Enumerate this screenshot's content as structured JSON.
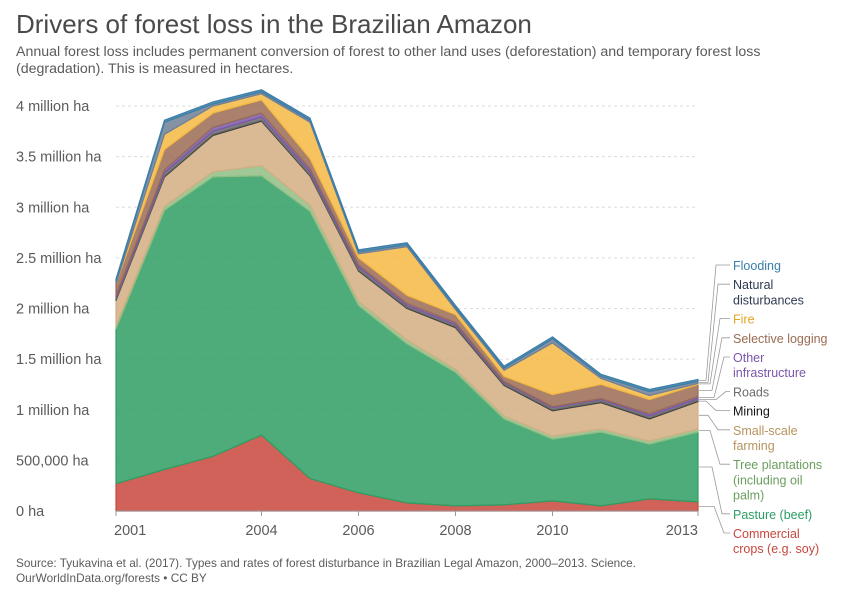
{
  "title": "Drivers of forest loss in the Brazilian Amazon",
  "subtitle": "Annual forest loss includes permanent conversion of forest to other land uses (deforestation) and temporary forest loss (degradation). This is measured in hectares.",
  "footer": {
    "source": "Source: Tyukavina et al. (2017). Types and rates of forest disturbance in Brazilian Legal Amazon, 2000–2013. Science.",
    "credit": "OurWorldInData.org/forests • CC BY"
  },
  "chart_data": {
    "type": "area",
    "stacked": true,
    "x": [
      2001,
      2002,
      2003,
      2004,
      2005,
      2006,
      2007,
      2008,
      2009,
      2010,
      2011,
      2012,
      2013
    ],
    "xlim": [
      2001,
      2013
    ],
    "ylim": [
      0,
      4000000
    ],
    "yticks": [
      0,
      500000,
      1000000,
      1500000,
      2000000,
      2500000,
      3000000,
      3500000,
      4000000
    ],
    "ytick_labels": [
      "0 ha",
      "500,000 ha",
      "1 million ha",
      "1.5 million ha",
      "2 million ha",
      "2.5 million ha",
      "3 million ha",
      "3.5 million ha",
      "4 million ha"
    ],
    "xticks": [
      2001,
      2004,
      2006,
      2008,
      2010,
      2013
    ],
    "xtick_labels": [
      "2001",
      "2004",
      "2006",
      "2008",
      "2010",
      "2013"
    ],
    "grid": true,
    "legend_position": "right",
    "series": [
      {
        "name": "Commercial crops (e.g. soy)",
        "label_lines": [
          "Commercial",
          "crops (e.g. soy)"
        ],
        "color": "#c9463d",
        "values": [
          270000,
          410000,
          540000,
          750000,
          320000,
          180000,
          80000,
          50000,
          60000,
          100000,
          50000,
          120000,
          90000
        ]
      },
      {
        "name": "Pasture (beef)",
        "label_lines": [
          "Pasture (beef)"
        ],
        "color": "#2e9e63",
        "values": [
          1530000,
          2560000,
          2760000,
          2560000,
          2640000,
          1850000,
          1570000,
          1320000,
          850000,
          610000,
          730000,
          540000,
          690000
        ]
      },
      {
        "name": "Tree plantations (including oil palm)",
        "label_lines": [
          "Tree plantations",
          "(including oil",
          "palm)"
        ],
        "color": "#8fbd83",
        "values": [
          30000,
          40000,
          50000,
          100000,
          60000,
          40000,
          40000,
          30000,
          30000,
          30000,
          30000,
          30000,
          30000
        ]
      },
      {
        "name": "Small-scale farming",
        "label_lines": [
          "Small-scale",
          "farming"
        ],
        "color": "#d3ae83",
        "values": [
          250000,
          290000,
          360000,
          440000,
          290000,
          300000,
          310000,
          410000,
          300000,
          250000,
          260000,
          220000,
          270000
        ]
      },
      {
        "name": "Mining",
        "label_lines": [
          "Mining"
        ],
        "color": "#3d3d3d",
        "values": [
          10000,
          10000,
          10000,
          10000,
          10000,
          10000,
          10000,
          10000,
          10000,
          10000,
          10000,
          10000,
          10000
        ]
      },
      {
        "name": "Roads",
        "label_lines": [
          "Roads"
        ],
        "color": "#6b6b6b",
        "values": [
          20000,
          30000,
          30000,
          30000,
          30000,
          30000,
          20000,
          20000,
          20000,
          20000,
          20000,
          20000,
          20000
        ]
      },
      {
        "name": "Other infrastructure",
        "label_lines": [
          "Other",
          "infrastructure"
        ],
        "color": "#7a57a8",
        "values": [
          20000,
          30000,
          40000,
          40000,
          30000,
          20000,
          20000,
          20000,
          10000,
          10000,
          10000,
          20000,
          20000
        ]
      },
      {
        "name": "Selective logging",
        "label_lines": [
          "Selective logging"
        ],
        "color": "#9a6b52",
        "values": [
          120000,
          200000,
          140000,
          130000,
          100000,
          70000,
          80000,
          80000,
          50000,
          120000,
          140000,
          140000,
          120000
        ]
      },
      {
        "name": "Fire",
        "label_lines": [
          "Fire"
        ],
        "color": "#f4b942",
        "values": [
          0,
          150000,
          70000,
          60000,
          360000,
          40000,
          480000,
          50000,
          60000,
          510000,
          60000,
          40000,
          10000
        ]
      },
      {
        "name": "Natural disturbances",
        "label_lines": [
          "Natural",
          "disturbances"
        ],
        "color": "#6f7f96",
        "values": [
          20000,
          120000,
          20000,
          20000,
          20000,
          20000,
          20000,
          20000,
          20000,
          40000,
          20000,
          40000,
          20000
        ]
      },
      {
        "name": "Flooding",
        "label_lines": [
          "Flooding"
        ],
        "color": "#3b7ea8",
        "values": [
          20000,
          20000,
          20000,
          20000,
          20000,
          20000,
          20000,
          20000,
          20000,
          20000,
          20000,
          20000,
          20000
        ]
      }
    ]
  }
}
